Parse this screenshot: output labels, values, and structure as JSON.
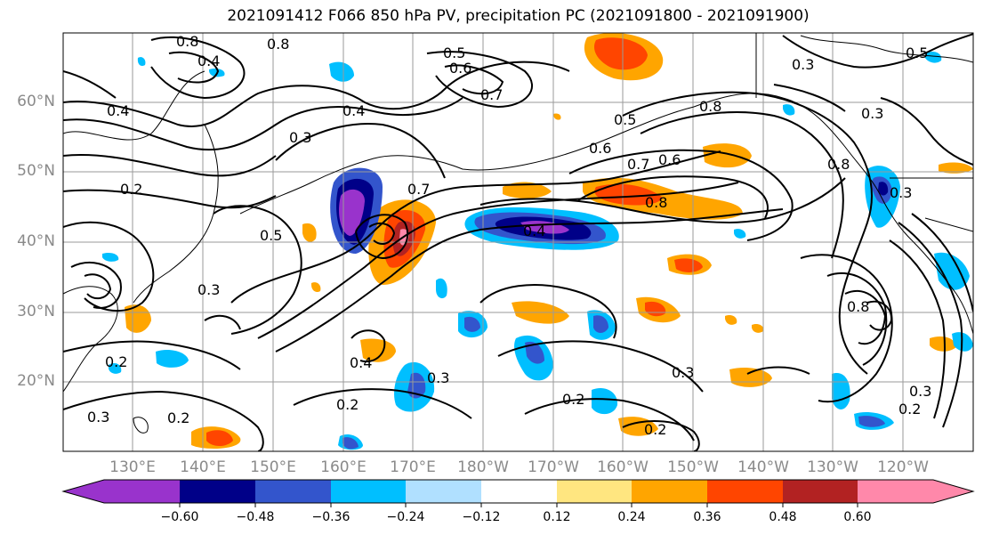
{
  "title": "2021091412 F066 850 hPa PV, precipitation PC (2021091800 - 2021091900)",
  "lat_labels": [
    "60°N",
    "50°N",
    "40°N",
    "30°N",
    "20°N"
  ],
  "lon_labels": [
    "130°E",
    "140°E",
    "150°E",
    "160°E",
    "170°E",
    "180°W",
    "170°W",
    "160°W",
    "150°W",
    "140°W",
    "130°W",
    "120°W"
  ],
  "colorbar": {
    "labels": [
      "−0.60",
      "−0.48",
      "−0.36",
      "−0.24",
      "−0.12",
      "0.12",
      "0.24",
      "0.36",
      "0.48",
      "0.60"
    ],
    "colors": [
      "#9933cc",
      "#000088",
      "#3355cc",
      "#00bfff",
      "#b0e0ff",
      "#ffffff",
      "#ffe680",
      "#ffa500",
      "#ff4500",
      "#b22222",
      "#ff88aa"
    ]
  },
  "contour_labels": [
    "0.8",
    "0.8",
    "0.4",
    "0.5",
    "0.6",
    "0.7",
    "0.4",
    "0.3",
    "0.4",
    "0.3",
    "0.2",
    "0.5",
    "0.7",
    "0.6",
    "0.7",
    "0.8",
    "0.6",
    "0.5",
    "0.8",
    "0.3",
    "0.3",
    "0.2",
    "0.4",
    "0.3",
    "0.2",
    "0.3",
    "0.2",
    "0.4",
    "0.3",
    "0.2",
    "0.2",
    "0.3",
    "0.8",
    "0.8",
    "0.5",
    "0.3",
    "0.2"
  ]
}
